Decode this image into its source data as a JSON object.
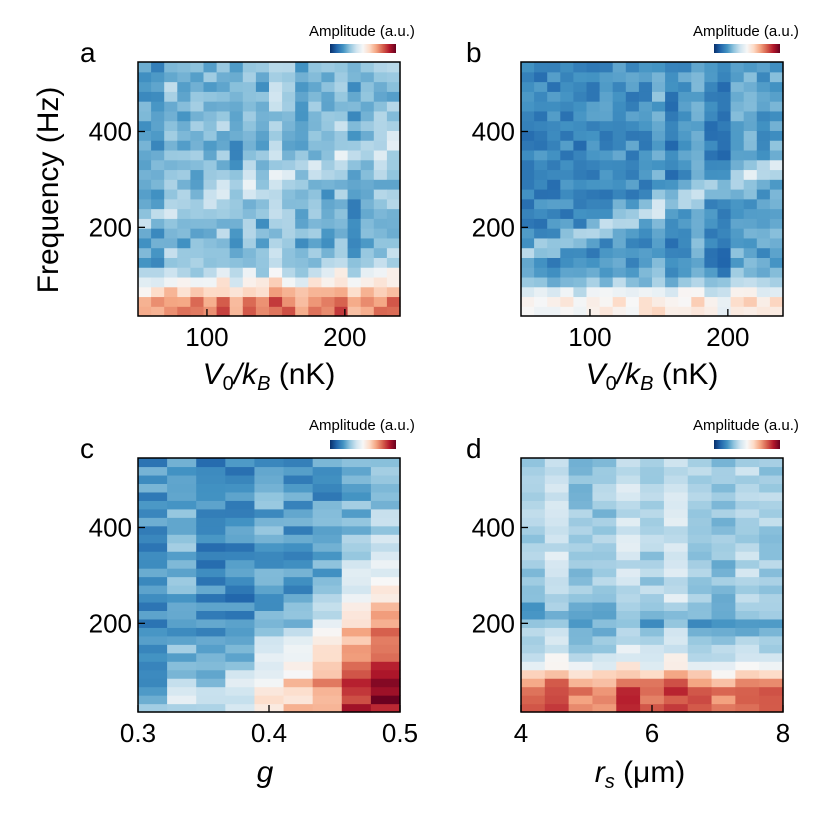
{
  "colors": {
    "cmap": [
      "#08306b",
      "#2166ac",
      "#4393c3",
      "#92c5de",
      "#d1e5f0",
      "#f7f7f7",
      "#fddbc7",
      "#f4a582",
      "#d6604d",
      "#b2182b",
      "#67001f"
    ]
  },
  "chart_data": [
    {
      "panel": "a",
      "type": "heatmap",
      "colorbar_label": "Amplitude (a.u.)",
      "xlabel": "V₀/k_B (nK)",
      "xlabel_parts": {
        "main": "V",
        "sub1": "0",
        "sep": "/k",
        "sub2": "B",
        "unit": " (nK)"
      },
      "ylabel": "Frequency (Hz)",
      "xlim": [
        50,
        240
      ],
      "ylim": [
        15,
        545
      ],
      "xticks": [
        100,
        200
      ],
      "xtick_labels": [
        "100",
        "200"
      ],
      "yticks": [
        200,
        400
      ],
      "ytick_labels": [
        "200",
        "400"
      ],
      "nx": 20,
      "ny": 26,
      "features": {
        "low_band_center": 35,
        "low_band_width": 50,
        "low_band_amp": 0.95,
        "low_band_slope": 0.12,
        "mode_start": 210,
        "mode_slope": 0.9,
        "mode_amp": 0.22,
        "mode_width": 28,
        "background": -0.45,
        "noise": 0.28,
        "seed": 11
      }
    },
    {
      "panel": "b",
      "type": "heatmap",
      "colorbar_label": "Amplitude (a.u.)",
      "xlabel": "V₀/k_B (nK)",
      "xlabel_parts": {
        "main": "V",
        "sub1": "0",
        "sep": "/k",
        "sub2": "B",
        "unit": " (nK)"
      },
      "xlim": [
        50,
        240
      ],
      "ylim": [
        15,
        545
      ],
      "xticks": [
        100,
        200
      ],
      "xtick_labels": [
        "100",
        "200"
      ],
      "yticks": [
        200,
        400
      ],
      "ytick_labels": [
        "200",
        "400"
      ],
      "nx": 20,
      "ny": 26,
      "features": {
        "low_band_center": 40,
        "low_band_width": 45,
        "low_band_amp": 0.7,
        "low_band_slope": 0.0,
        "mode_start": 140,
        "mode_slope": 1.0,
        "mode_amp": 0.35,
        "mode_width": 22,
        "background": -0.6,
        "noise": 0.22,
        "seed": 23
      }
    },
    {
      "panel": "c",
      "type": "heatmap",
      "colorbar_label": "Amplitude (a.u.)",
      "xlabel": "g",
      "xlim": [
        0.3,
        0.5
      ],
      "ylim": [
        15,
        545
      ],
      "xticks": [
        0.3,
        0.4,
        0.5
      ],
      "xtick_labels": [
        "0.3",
        "0.4",
        "0.5"
      ],
      "yticks": [
        200,
        400
      ],
      "ytick_labels": [
        "200",
        "400"
      ],
      "nx": 9,
      "ny": 30,
      "features": {
        "low_band_center": 40,
        "low_band_width": 120,
        "low_band_amp": 1.1,
        "low_band_slope": 0.0,
        "g_growth": true,
        "mode_amp": 0.0,
        "mode_start": 0,
        "mode_slope": 0,
        "mode_width": 1,
        "background": -0.55,
        "noise": 0.3,
        "seed": 37
      }
    },
    {
      "panel": "d",
      "type": "heatmap",
      "colorbar_label": "Amplitude (a.u.)",
      "xlabel": "r_s (μm)",
      "xlabel_parts": {
        "main": "r",
        "sub1": "s",
        "unit": " (μm)"
      },
      "xlim": [
        4,
        8
      ],
      "ylim": [
        15,
        545
      ],
      "xticks": [
        4,
        6,
        8
      ],
      "xtick_labels": [
        "4",
        "6",
        "8"
      ],
      "yticks": [
        200,
        400
      ],
      "ytick_labels": [
        "200",
        "400"
      ],
      "nx": 11,
      "ny": 30,
      "features": {
        "low_band_center": 55,
        "low_band_width": 55,
        "low_band_amp": 0.9,
        "low_band_slope": 0.0,
        "mode_start": 230,
        "mode_slope": -10,
        "mode_amp": -0.25,
        "mode_width": 25,
        "background": -0.3,
        "noise": 0.22,
        "seed": 51
      }
    }
  ]
}
